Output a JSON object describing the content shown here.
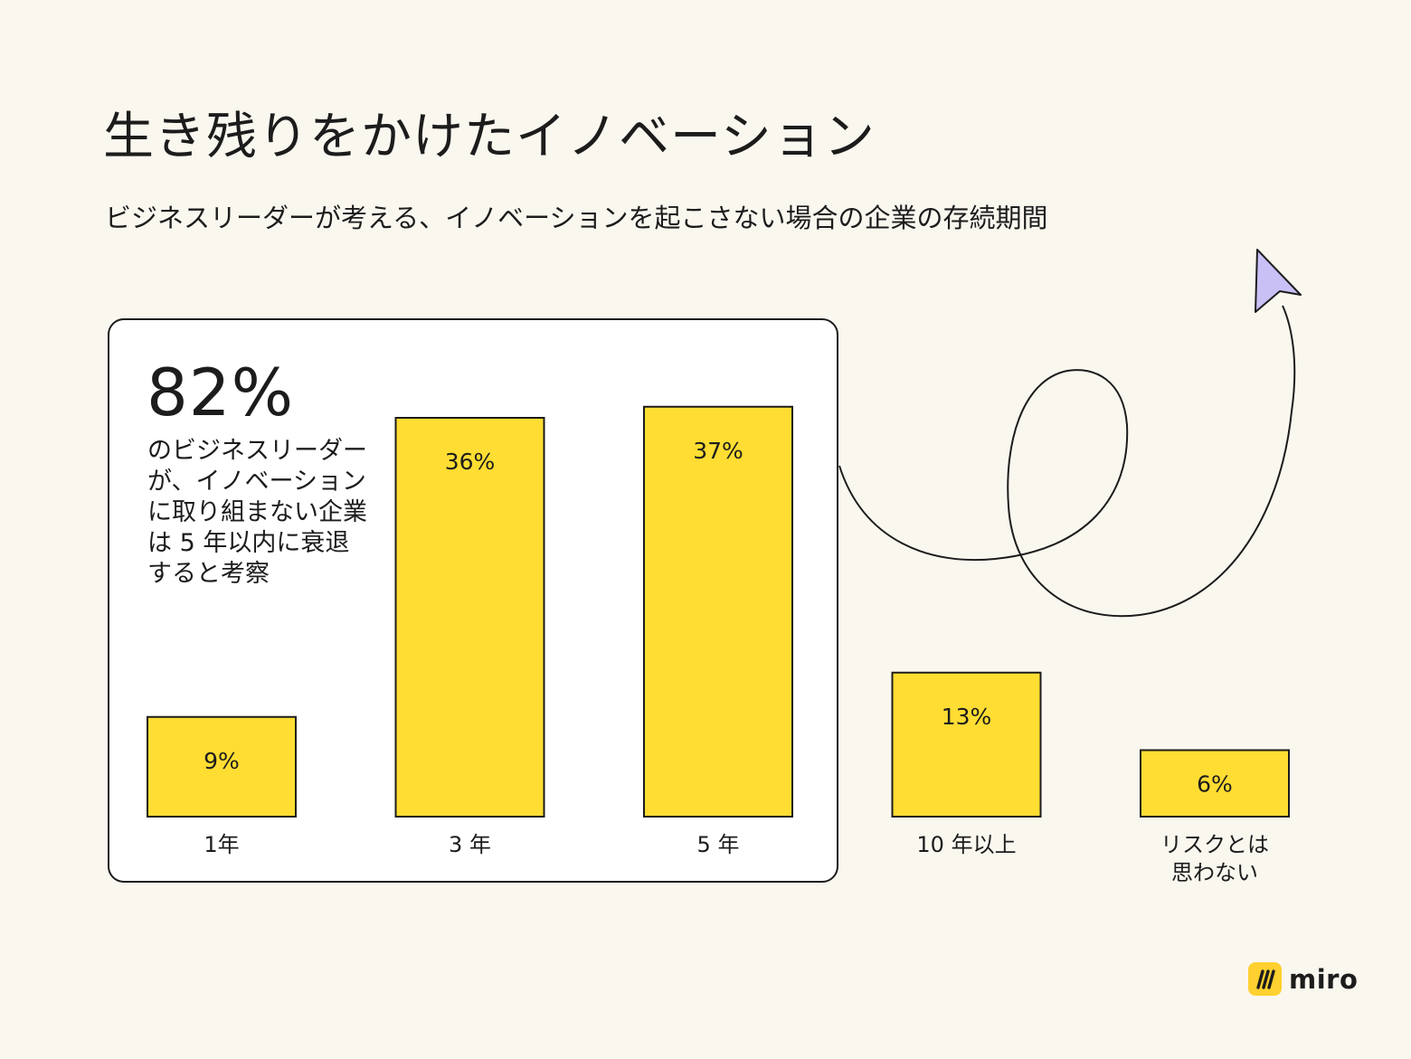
{
  "header": {
    "title": "生き残りをかけたイノベーション",
    "subtitle": "ビジネスリーダーが考える、イノベーションを起こさない場合の企業の存続期間"
  },
  "highlight": {
    "stat": "82%",
    "description": "のビジネスリーダーが、イノベーションに取り組まない企業は 5 年以内に衰退すると考察"
  },
  "chart_data": {
    "type": "bar",
    "title": "ビジネスリーダーが考える、イノベーションを起こさない場合の企業の存続期間",
    "xlabel": "",
    "ylabel": "",
    "ylim": [
      0,
      40
    ],
    "grid": false,
    "categories": [
      [
        "1年"
      ],
      [
        "3 年"
      ],
      [
        "5 年"
      ],
      [
        "10 年以上"
      ],
      [
        "リスクとは",
        "思わない"
      ]
    ],
    "values": [
      9,
      36,
      37,
      13,
      6
    ],
    "value_labels": [
      "9%",
      "36%",
      "37%",
      "13%",
      "6%"
    ],
    "bar_color": "#ffdd33"
  },
  "colors": {
    "background": "#faf7ef",
    "bar": "#ffdd33",
    "cursor": "#c9c0f5",
    "ink": "#1c1c1c"
  },
  "logo": {
    "text": "miro",
    "icon": "miro-logo-icon"
  }
}
